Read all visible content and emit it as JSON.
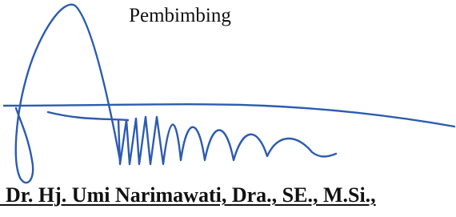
{
  "role": "Pembimbing",
  "name": ". Dr. Hj. Umi Narimawati, Dra., SE., M.Si.,"
}
